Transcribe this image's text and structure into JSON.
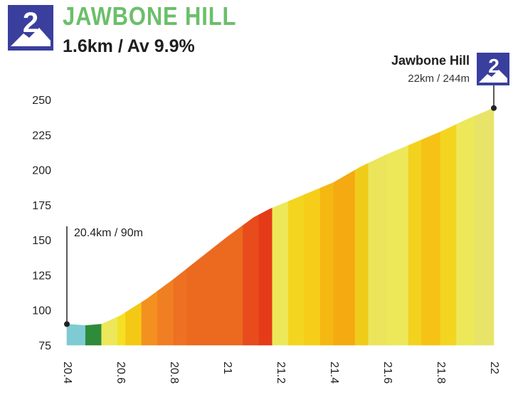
{
  "header": {
    "category": "2",
    "title": "JAWBONE HILL",
    "stats": "1.6km / Av 9.9%"
  },
  "summit": {
    "name": "Jawbone Hill",
    "stats": "22km / 244m",
    "category": "2"
  },
  "start": {
    "label": "20.4km / 90m"
  },
  "colors": {
    "badge": "#3a3f9e",
    "title": "#6bbf6a"
  },
  "chart_data": {
    "type": "area",
    "title": "JAWBONE HILL",
    "xlabel": "",
    "ylabel": "",
    "xlim": [
      20.4,
      22.0
    ],
    "ylim": [
      75,
      250
    ],
    "x_ticks": [
      "20.4",
      "20.6",
      "20.8",
      "21",
      "21.2",
      "21.4",
      "21.6",
      "21.8",
      "22"
    ],
    "y_ticks": [
      "75",
      "100",
      "125",
      "150",
      "175",
      "200",
      "225",
      "250"
    ],
    "grid": false,
    "profile": [
      {
        "x": 20.4,
        "y": 90
      },
      {
        "x": 20.47,
        "y": 89
      },
      {
        "x": 20.53,
        "y": 90
      },
      {
        "x": 20.6,
        "y": 96
      },
      {
        "x": 20.7,
        "y": 108
      },
      {
        "x": 20.8,
        "y": 122
      },
      {
        "x": 20.9,
        "y": 137
      },
      {
        "x": 21.0,
        "y": 152
      },
      {
        "x": 21.1,
        "y": 166
      },
      {
        "x": 21.16,
        "y": 172
      },
      {
        "x": 21.3,
        "y": 183
      },
      {
        "x": 21.4,
        "y": 191
      },
      {
        "x": 21.5,
        "y": 202
      },
      {
        "x": 21.6,
        "y": 211
      },
      {
        "x": 21.7,
        "y": 219
      },
      {
        "x": 21.8,
        "y": 227
      },
      {
        "x": 21.9,
        "y": 236
      },
      {
        "x": 22.0,
        "y": 244
      }
    ],
    "segments": [
      {
        "x0": 20.4,
        "x1": 20.47,
        "color": "#7ecbd3"
      },
      {
        "x0": 20.47,
        "x1": 20.53,
        "color": "#2e8b3a"
      },
      {
        "x0": 20.53,
        "x1": 20.59,
        "color": "#ece85a"
      },
      {
        "x0": 20.59,
        "x1": 20.62,
        "color": "#f6e025"
      },
      {
        "x0": 20.62,
        "x1": 20.68,
        "color": "#f3c915"
      },
      {
        "x0": 20.68,
        "x1": 20.74,
        "color": "#f49020"
      },
      {
        "x0": 20.74,
        "x1": 20.8,
        "color": "#f07e22"
      },
      {
        "x0": 20.8,
        "x1": 20.85,
        "color": "#ee7022"
      },
      {
        "x0": 20.85,
        "x1": 21.06,
        "color": "#ec6920"
      },
      {
        "x0": 21.06,
        "x1": 21.12,
        "color": "#e84b1c"
      },
      {
        "x0": 21.12,
        "x1": 21.17,
        "color": "#e53b18"
      },
      {
        "x0": 21.17,
        "x1": 21.23,
        "color": "#ece85a"
      },
      {
        "x0": 21.23,
        "x1": 21.29,
        "color": "#f3d520"
      },
      {
        "x0": 21.29,
        "x1": 21.35,
        "color": "#f6ce1a"
      },
      {
        "x0": 21.35,
        "x1": 21.4,
        "color": "#f5b711"
      },
      {
        "x0": 21.4,
        "x1": 21.48,
        "color": "#f4aa10"
      },
      {
        "x0": 21.48,
        "x1": 21.53,
        "color": "#f0cc1a"
      },
      {
        "x0": 21.53,
        "x1": 21.6,
        "color": "#ece45a"
      },
      {
        "x0": 21.6,
        "x1": 21.68,
        "color": "#ece85a"
      },
      {
        "x0": 21.68,
        "x1": 21.73,
        "color": "#f3d21e"
      },
      {
        "x0": 21.73,
        "x1": 21.8,
        "color": "#f5c215"
      },
      {
        "x0": 21.8,
        "x1": 21.86,
        "color": "#f3d520"
      },
      {
        "x0": 21.86,
        "x1": 21.93,
        "color": "#ece85a"
      },
      {
        "x0": 21.93,
        "x1": 22.0,
        "color": "#e8e46a"
      }
    ],
    "markers": [
      {
        "x": 20.4,
        "y": 90,
        "label": "20.4km / 90m"
      },
      {
        "x": 22.0,
        "y": 244,
        "label": "22km / 244m"
      }
    ]
  }
}
